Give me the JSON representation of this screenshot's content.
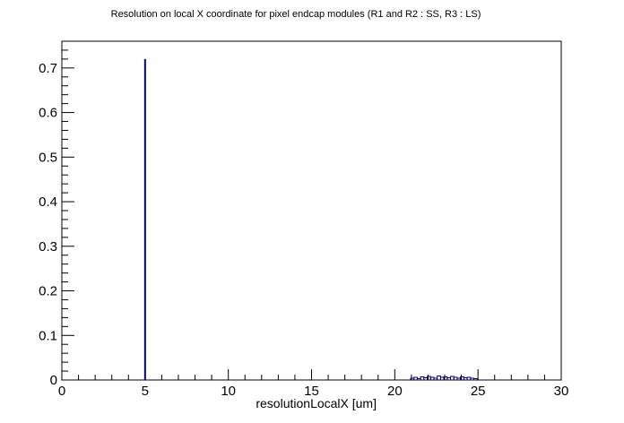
{
  "chart_data": {
    "type": "bar",
    "title": "Resolution on local X coordinate for pixel endcap modules (R1 and R2 : SS, R3 : LS)",
    "xlabel": "resolutionLocalX [um]",
    "ylabel": "",
    "xlim": [
      0,
      30
    ],
    "ylim": [
      0,
      0.76
    ],
    "xticks": [
      "0",
      "5",
      "10",
      "15",
      "20",
      "25",
      "30"
    ],
    "yticks": [
      "0",
      "0.1",
      "0.2",
      "0.3",
      "0.4",
      "0.5",
      "0.6",
      "0.7"
    ],
    "grid": false,
    "legend": "none",
    "line_color": "#000080",
    "series": [
      {
        "x": [
          5.0,
          21.05,
          21.25,
          21.45,
          21.65,
          21.85,
          22.05,
          22.25,
          22.45,
          22.65,
          22.85,
          23.05,
          23.25,
          23.45,
          23.65,
          23.85,
          24.05,
          24.25,
          24.45,
          24.65,
          24.85
        ],
        "values": [
          0.72,
          0.004,
          0.006,
          0.003,
          0.007,
          0.005,
          0.008,
          0.006,
          0.004,
          0.009,
          0.006,
          0.007,
          0.005,
          0.008,
          0.006,
          0.004,
          0.007,
          0.005,
          0.006,
          0.004,
          0.003
        ]
      }
    ]
  }
}
